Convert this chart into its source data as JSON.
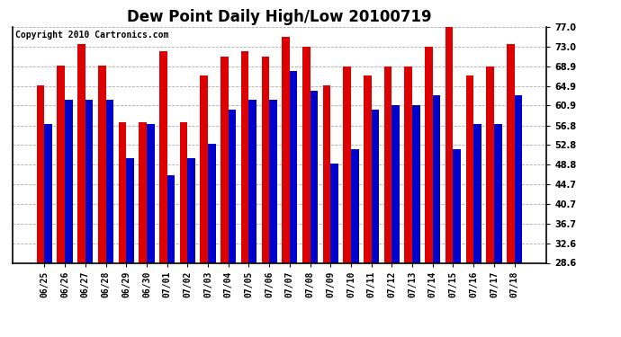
{
  "title": "Dew Point Daily High/Low 20100719",
  "copyright": "Copyright 2010 Cartronics.com",
  "dates": [
    "06/25",
    "06/26",
    "06/27",
    "06/28",
    "06/29",
    "06/30",
    "07/01",
    "07/02",
    "07/03",
    "07/04",
    "07/05",
    "07/06",
    "07/07",
    "07/08",
    "07/09",
    "07/10",
    "07/11",
    "07/12",
    "07/13",
    "07/14",
    "07/15",
    "07/16",
    "07/17",
    "07/18"
  ],
  "highs": [
    65.0,
    69.0,
    73.5,
    69.0,
    57.5,
    57.5,
    72.0,
    57.5,
    67.0,
    71.0,
    72.0,
    71.0,
    75.0,
    73.0,
    65.0,
    68.9,
    67.0,
    68.9,
    68.9,
    73.0,
    77.0,
    67.0,
    68.9,
    73.5
  ],
  "lows": [
    57.0,
    62.0,
    62.0,
    62.0,
    50.0,
    57.0,
    46.5,
    50.0,
    53.0,
    60.0,
    62.0,
    62.0,
    68.0,
    64.0,
    49.0,
    52.0,
    60.0,
    61.0,
    61.0,
    63.0,
    52.0,
    57.0,
    57.0,
    63.0
  ],
  "high_color": "#dd0000",
  "low_color": "#0000cc",
  "bg_color": "#ffffff",
  "plot_bg_color": "#ffffff",
  "ylim_min": 28.6,
  "ylim_max": 77.0,
  "yticks": [
    28.6,
    32.6,
    36.7,
    40.7,
    44.7,
    48.8,
    52.8,
    56.8,
    60.9,
    64.9,
    68.9,
    73.0,
    77.0
  ],
  "bar_width": 0.38,
  "title_fontsize": 12,
  "tick_fontsize": 7,
  "copyright_fontsize": 7,
  "grid_color": "#aaaaaa",
  "grid_style": "--",
  "grid_linewidth": 0.6
}
